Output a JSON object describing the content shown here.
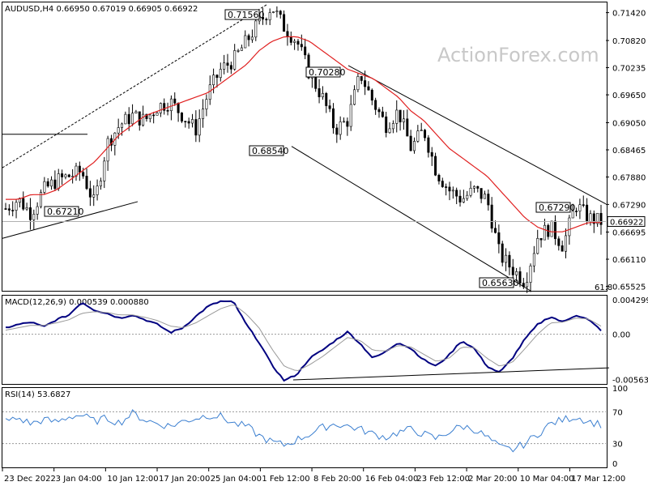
{
  "header": {
    "symbol_info": "AUDUSD,H4  0.66950 0.67019 0.66905 0.66922",
    "watermark": "ActionForex.com"
  },
  "colors": {
    "candles": "#000000",
    "ma": "#e02020",
    "trendlines": "#000000",
    "macd": "#000080",
    "signal": "#999999",
    "rsi": "#3b7fd0",
    "current_box": "#000000"
  },
  "annotations": {
    "fib_label": "61.8"
  },
  "chart_data": [
    {
      "type": "candlestick",
      "title": "AUDUSD,H4",
      "ohlc_last": {
        "open": 0.6695,
        "high": 0.67019,
        "low": 0.66905,
        "close": 0.66922
      },
      "current_price_label": "0.66922",
      "y_ticks": [
        "0.71420",
        "0.70820",
        "0.70235",
        "0.69650",
        "0.69050",
        "0.68465",
        "0.67880",
        "0.67290",
        "0.66922",
        "0.66695",
        "0.66110",
        "0.65525"
      ],
      "x_ticks": [
        "23 Dec 2022",
        "3 Jan 04:00",
        "10 Jan 12:00",
        "17 Jan 20:00",
        "25 Jan 04:00",
        "1 Feb 12:00",
        "8 Feb 20:00",
        "16 Feb 04:00",
        "23 Feb 12:00",
        "2 Mar 20:00",
        "10 Mar 04:00",
        "17 Mar 12:00"
      ],
      "ylim": [
        0.6543,
        0.7164
      ],
      "annotated_levels": [
        {
          "label": "0.71560",
          "value": 0.7156
        },
        {
          "label": "0.70280",
          "value": 0.7028
        },
        {
          "label": "0.68540",
          "value": 0.6854
        },
        {
          "label": "0.67210",
          "value": 0.6721
        },
        {
          "label": "0.67290",
          "value": 0.6729
        },
        {
          "label": "0.65630",
          "value": 0.6563
        }
      ],
      "close_path": [
        0.672,
        0.674,
        0.671,
        0.676,
        0.678,
        0.679,
        0.68,
        0.673,
        0.686,
        0.69,
        0.692,
        0.691,
        0.694,
        0.695,
        0.692,
        0.689,
        0.697,
        0.702,
        0.704,
        0.708,
        0.712,
        0.7156,
        0.711,
        0.708,
        0.701,
        0.696,
        0.689,
        0.691,
        0.701,
        0.695,
        0.69,
        0.693,
        0.685,
        0.689,
        0.68,
        0.676,
        0.674,
        0.676,
        0.674,
        0.662,
        0.659,
        0.6563,
        0.666,
        0.668,
        0.664,
        0.6729,
        0.67,
        0.6692
      ],
      "series": [
        {
          "name": "MA",
          "values": [
            0.674,
            0.674,
            0.675,
            0.675,
            0.676,
            0.678,
            0.68,
            0.682,
            0.685,
            0.688,
            0.69,
            0.692,
            0.693,
            0.694,
            0.695,
            0.696,
            0.697,
            0.699,
            0.701,
            0.703,
            0.706,
            0.708,
            0.709,
            0.709,
            0.708,
            0.706,
            0.704,
            0.702,
            0.701,
            0.7,
            0.698,
            0.696,
            0.693,
            0.691,
            0.688,
            0.685,
            0.683,
            0.681,
            0.679,
            0.676,
            0.673,
            0.67,
            0.668,
            0.667,
            0.667,
            0.668,
            0.669,
            0.669
          ]
        }
      ]
    },
    {
      "type": "line",
      "title": "MACD(12,26,9) 0.000539 0.000880",
      "y_ticks": [
        "0.004299",
        "0.00",
        "-0.005636"
      ],
      "ylim": [
        -0.0062,
        0.0048
      ],
      "series": [
        {
          "name": "MACD",
          "values": [
            0.0008,
            0.0012,
            0.0015,
            0.0009,
            0.0018,
            0.0024,
            0.004,
            0.003,
            0.0026,
            0.002,
            0.0024,
            0.0018,
            0.0012,
            0.0002,
            0.0008,
            0.0022,
            0.0035,
            0.0041,
            0.004,
            0.0012,
            -0.001,
            -0.0038,
            -0.0058,
            -0.005,
            -0.003,
            -0.002,
            -0.0008,
            0.0003,
            -0.0012,
            -0.003,
            -0.0022,
            -0.001,
            -0.0018,
            -0.0032,
            -0.004,
            -0.0026,
            -0.0008,
            -0.0018,
            -0.004,
            -0.0048,
            -0.003,
            -0.0006,
            0.0012,
            0.0022,
            0.0015,
            0.0024,
            0.0018,
            0.0005
          ]
        },
        {
          "name": "Signal",
          "values": [
            0.0005,
            0.0008,
            0.0011,
            0.0011,
            0.0014,
            0.0018,
            0.0026,
            0.0028,
            0.0027,
            0.0024,
            0.0024,
            0.0021,
            0.0017,
            0.001,
            0.0008,
            0.0014,
            0.0023,
            0.0032,
            0.0037,
            0.0025,
            0.0008,
            -0.0018,
            -0.004,
            -0.0046,
            -0.0038,
            -0.0028,
            -0.0016,
            -0.0004,
            -0.0008,
            -0.002,
            -0.0021,
            -0.0014,
            -0.0016,
            -0.0025,
            -0.0034,
            -0.003,
            -0.0016,
            -0.0017,
            -0.003,
            -0.004,
            -0.0035,
            -0.0018,
            0.0,
            0.0014,
            0.0015,
            0.002,
            0.0019,
            0.001
          ]
        }
      ]
    },
    {
      "type": "line",
      "title": "RSI(14) 53.6827",
      "y_ticks": [
        "100",
        "70",
        "30",
        "0"
      ],
      "ylim": [
        0,
        100
      ],
      "series": [
        {
          "name": "RSI",
          "values": [
            58,
            62,
            55,
            60,
            57,
            64,
            66,
            58,
            62,
            56,
            68,
            60,
            55,
            52,
            58,
            62,
            66,
            64,
            55,
            52,
            40,
            32,
            28,
            35,
            42,
            50,
            55,
            52,
            48,
            42,
            38,
            44,
            48,
            42,
            36,
            45,
            52,
            48,
            38,
            25,
            22,
            30,
            42,
            55,
            60,
            64,
            58,
            54
          ]
        }
      ]
    }
  ]
}
